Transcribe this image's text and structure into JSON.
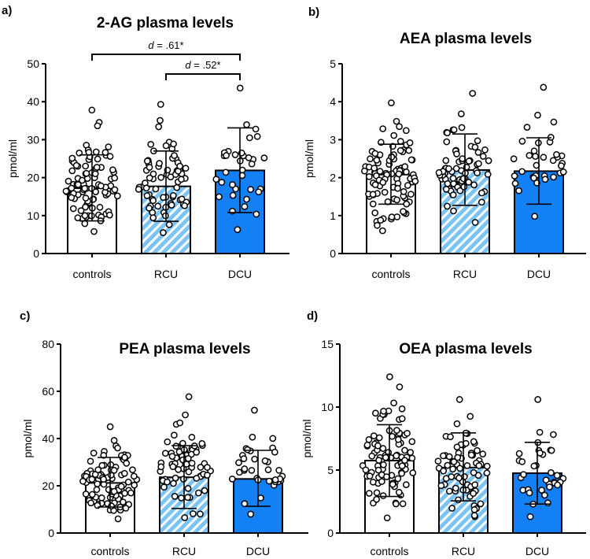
{
  "colors": {
    "controls": "#ffffff",
    "RCU_base": "#7cc4f4",
    "RCU_stripe": "#ffffff",
    "DCU": "#1380f5",
    "stroke": "#000000"
  },
  "chart_data": [
    {
      "panel": "a)",
      "type": "bar",
      "title": "2-AG plasma levels",
      "ylabel": "pmol/ml",
      "ylim": [
        0,
        50
      ],
      "yticks": [
        "0",
        "10",
        "20",
        "30",
        "40",
        "50"
      ],
      "categories": [
        "controls",
        "RCU",
        "DCU"
      ],
      "means": [
        17.2,
        17.7,
        21.9
      ],
      "error_low": [
        8.6,
        8.5,
        10.8
      ],
      "error_high": [
        26.0,
        27.0,
        33.1
      ],
      "point_range": [
        [
          5.8,
          37.8
        ],
        [
          5.5,
          39.3
        ],
        [
          6.3,
          43.6
        ]
      ],
      "annotations": [
        {
          "from": "controls",
          "to": "DCU",
          "label_italic": "d",
          "label": " = .61*"
        },
        {
          "from": "RCU",
          "to": "DCU",
          "label_italic": "d",
          "label": " = .52*"
        }
      ]
    },
    {
      "panel": "b)",
      "type": "bar",
      "title": "AEA plasma levels",
      "ylabel": "pmol/ml",
      "ylim": [
        0,
        5
      ],
      "yticks": [
        "0",
        "1",
        "2",
        "3",
        "4",
        "5"
      ],
      "categories": [
        "controls",
        "RCU",
        "DCU"
      ],
      "means": [
        2.08,
        2.2,
        2.17
      ],
      "error_low": [
        1.3,
        1.27,
        1.3
      ],
      "error_high": [
        2.88,
        3.15,
        3.05
      ],
      "point_range": [
        [
          0.6,
          3.97
        ],
        [
          0.82,
          4.22
        ],
        [
          0.98,
          4.38
        ]
      ],
      "annotations": []
    },
    {
      "panel": "c)",
      "type": "bar",
      "title": "PEA plasma levels",
      "ylabel": "pmol/ml",
      "ylim": [
        0,
        80
      ],
      "yticks": [
        "0",
        "20",
        "40",
        "60",
        "80"
      ],
      "categories": [
        "controls",
        "RCU",
        "DCU"
      ],
      "means": [
        21.2,
        23.6,
        22.9
      ],
      "error_low": [
        11.0,
        10.4,
        11.3
      ],
      "error_high": [
        32.0,
        37.0,
        35.0
      ],
      "point_range": [
        [
          6.0,
          45.0
        ],
        [
          6.5,
          57.7
        ],
        [
          8.0,
          52.0
        ]
      ],
      "annotations": []
    },
    {
      "panel": "d)",
      "type": "bar",
      "title": "OEA plasma levels",
      "ylabel": "pmol/ml",
      "ylim": [
        0,
        15
      ],
      "yticks": [
        "0",
        "5",
        "10",
        "15"
      ],
      "categories": [
        "controls",
        "RCU",
        "DCU"
      ],
      "means": [
        5.75,
        5.2,
        4.75
      ],
      "error_low": [
        2.9,
        2.55,
        2.3
      ],
      "error_high": [
        8.6,
        7.95,
        7.2
      ],
      "point_range": [
        [
          1.2,
          12.4
        ],
        [
          1.3,
          10.6
        ],
        [
          1.3,
          10.6
        ]
      ],
      "annotations": []
    }
  ]
}
